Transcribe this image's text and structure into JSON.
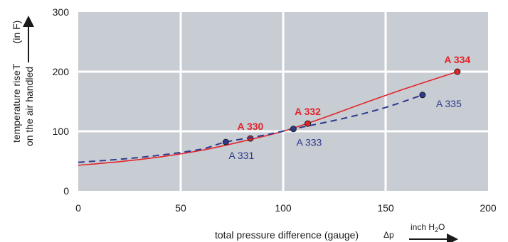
{
  "chart_data": {
    "type": "line",
    "xlabel": "total pressure difference (gauge)",
    "xlabel_symbol": "Δp",
    "x_unit": {
      "main": "inch H",
      "sub": "2",
      "tail": "O"
    },
    "ylabel_line1": "temperature rise",
    "ylabel_line2": "on the air handled",
    "ylabel_symbol": "T",
    "ylabel_unit": "(in F)",
    "xlim": [
      0,
      200
    ],
    "ylim": [
      0,
      300
    ],
    "x_ticks": [
      0,
      50,
      100,
      150,
      200
    ],
    "y_ticks": [
      0,
      100,
      200,
      300
    ],
    "grid": true,
    "background_color": "#c8ccd3",
    "grid_color": "#ffffff",
    "series": [
      {
        "color": "#e3242b",
        "style": "solid",
        "x": [
          0,
          20,
          40,
          60,
          80,
          100,
          120,
          140,
          160,
          185
        ],
        "y": [
          43,
          49,
          57,
          68,
          83,
          100,
          123,
          148,
          172,
          200
        ],
        "points": [
          {
            "label": "A 330",
            "x": 84,
            "y": 88,
            "label_anchor": "above"
          },
          {
            "label": "A 332",
            "x": 112,
            "y": 113,
            "label_anchor": "above"
          },
          {
            "label": "A 334",
            "x": 185,
            "y": 200,
            "label_anchor": "above"
          }
        ]
      },
      {
        "color": "#2e3a8c",
        "style": "dashed",
        "x": [
          0,
          20,
          40,
          60,
          72,
          90,
          105,
          130,
          150,
          168
        ],
        "y": [
          48,
          53,
          60,
          70,
          82,
          93,
          104,
          122,
          140,
          161
        ],
        "points": [
          {
            "label": "A 331",
            "x": 72,
            "y": 82,
            "label_anchor": "below"
          },
          {
            "label": "A 333",
            "x": 105,
            "y": 104,
            "label_anchor": "below"
          },
          {
            "label": "A 335",
            "x": 168,
            "y": 161,
            "label_anchor": "below-right"
          }
        ]
      }
    ]
  }
}
